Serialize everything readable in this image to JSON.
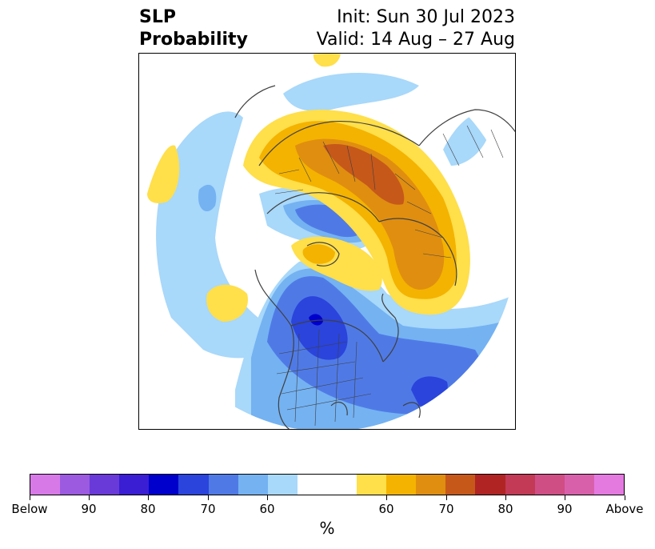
{
  "header": {
    "title_line1": "SLP",
    "title_line2": "Probability",
    "init": "Init: Sun 30 Jul 2023",
    "valid": "Valid: 14 Aug – 27 Aug"
  },
  "colorbar": {
    "unit": "%",
    "tick_labels": [
      "Below",
      "90",
      "80",
      "70",
      "60",
      "60",
      "70",
      "80",
      "90",
      "Above"
    ],
    "colors": [
      "#d77ae8",
      "#9b5ae0",
      "#6a3ad8",
      "#3a1ed4",
      "#0000cc",
      "#2a44dc",
      "#4f7ae6",
      "#74b2f2",
      "#a8d8fa",
      "#ffffff",
      "#ffdf4a",
      "#f4b300",
      "#e08e10",
      "#c6581a",
      "#b02424",
      "#c23a56",
      "#cf4e84",
      "#d860ab",
      "#e47ae0"
    ]
  },
  "map": {
    "projection": "north-polar-stereographic",
    "palette": {
      "light_blue": "#a8d8fa",
      "mid_blue": "#74b2f2",
      "blue": "#4f7ae6",
      "deep_blue": "#2a44dc",
      "navy": "#0000cc",
      "yellow": "#ffdf4a",
      "gold": "#f4b300",
      "orange": "#e08e10",
      "rust": "#c6581a",
      "coast": "#404040"
    }
  }
}
